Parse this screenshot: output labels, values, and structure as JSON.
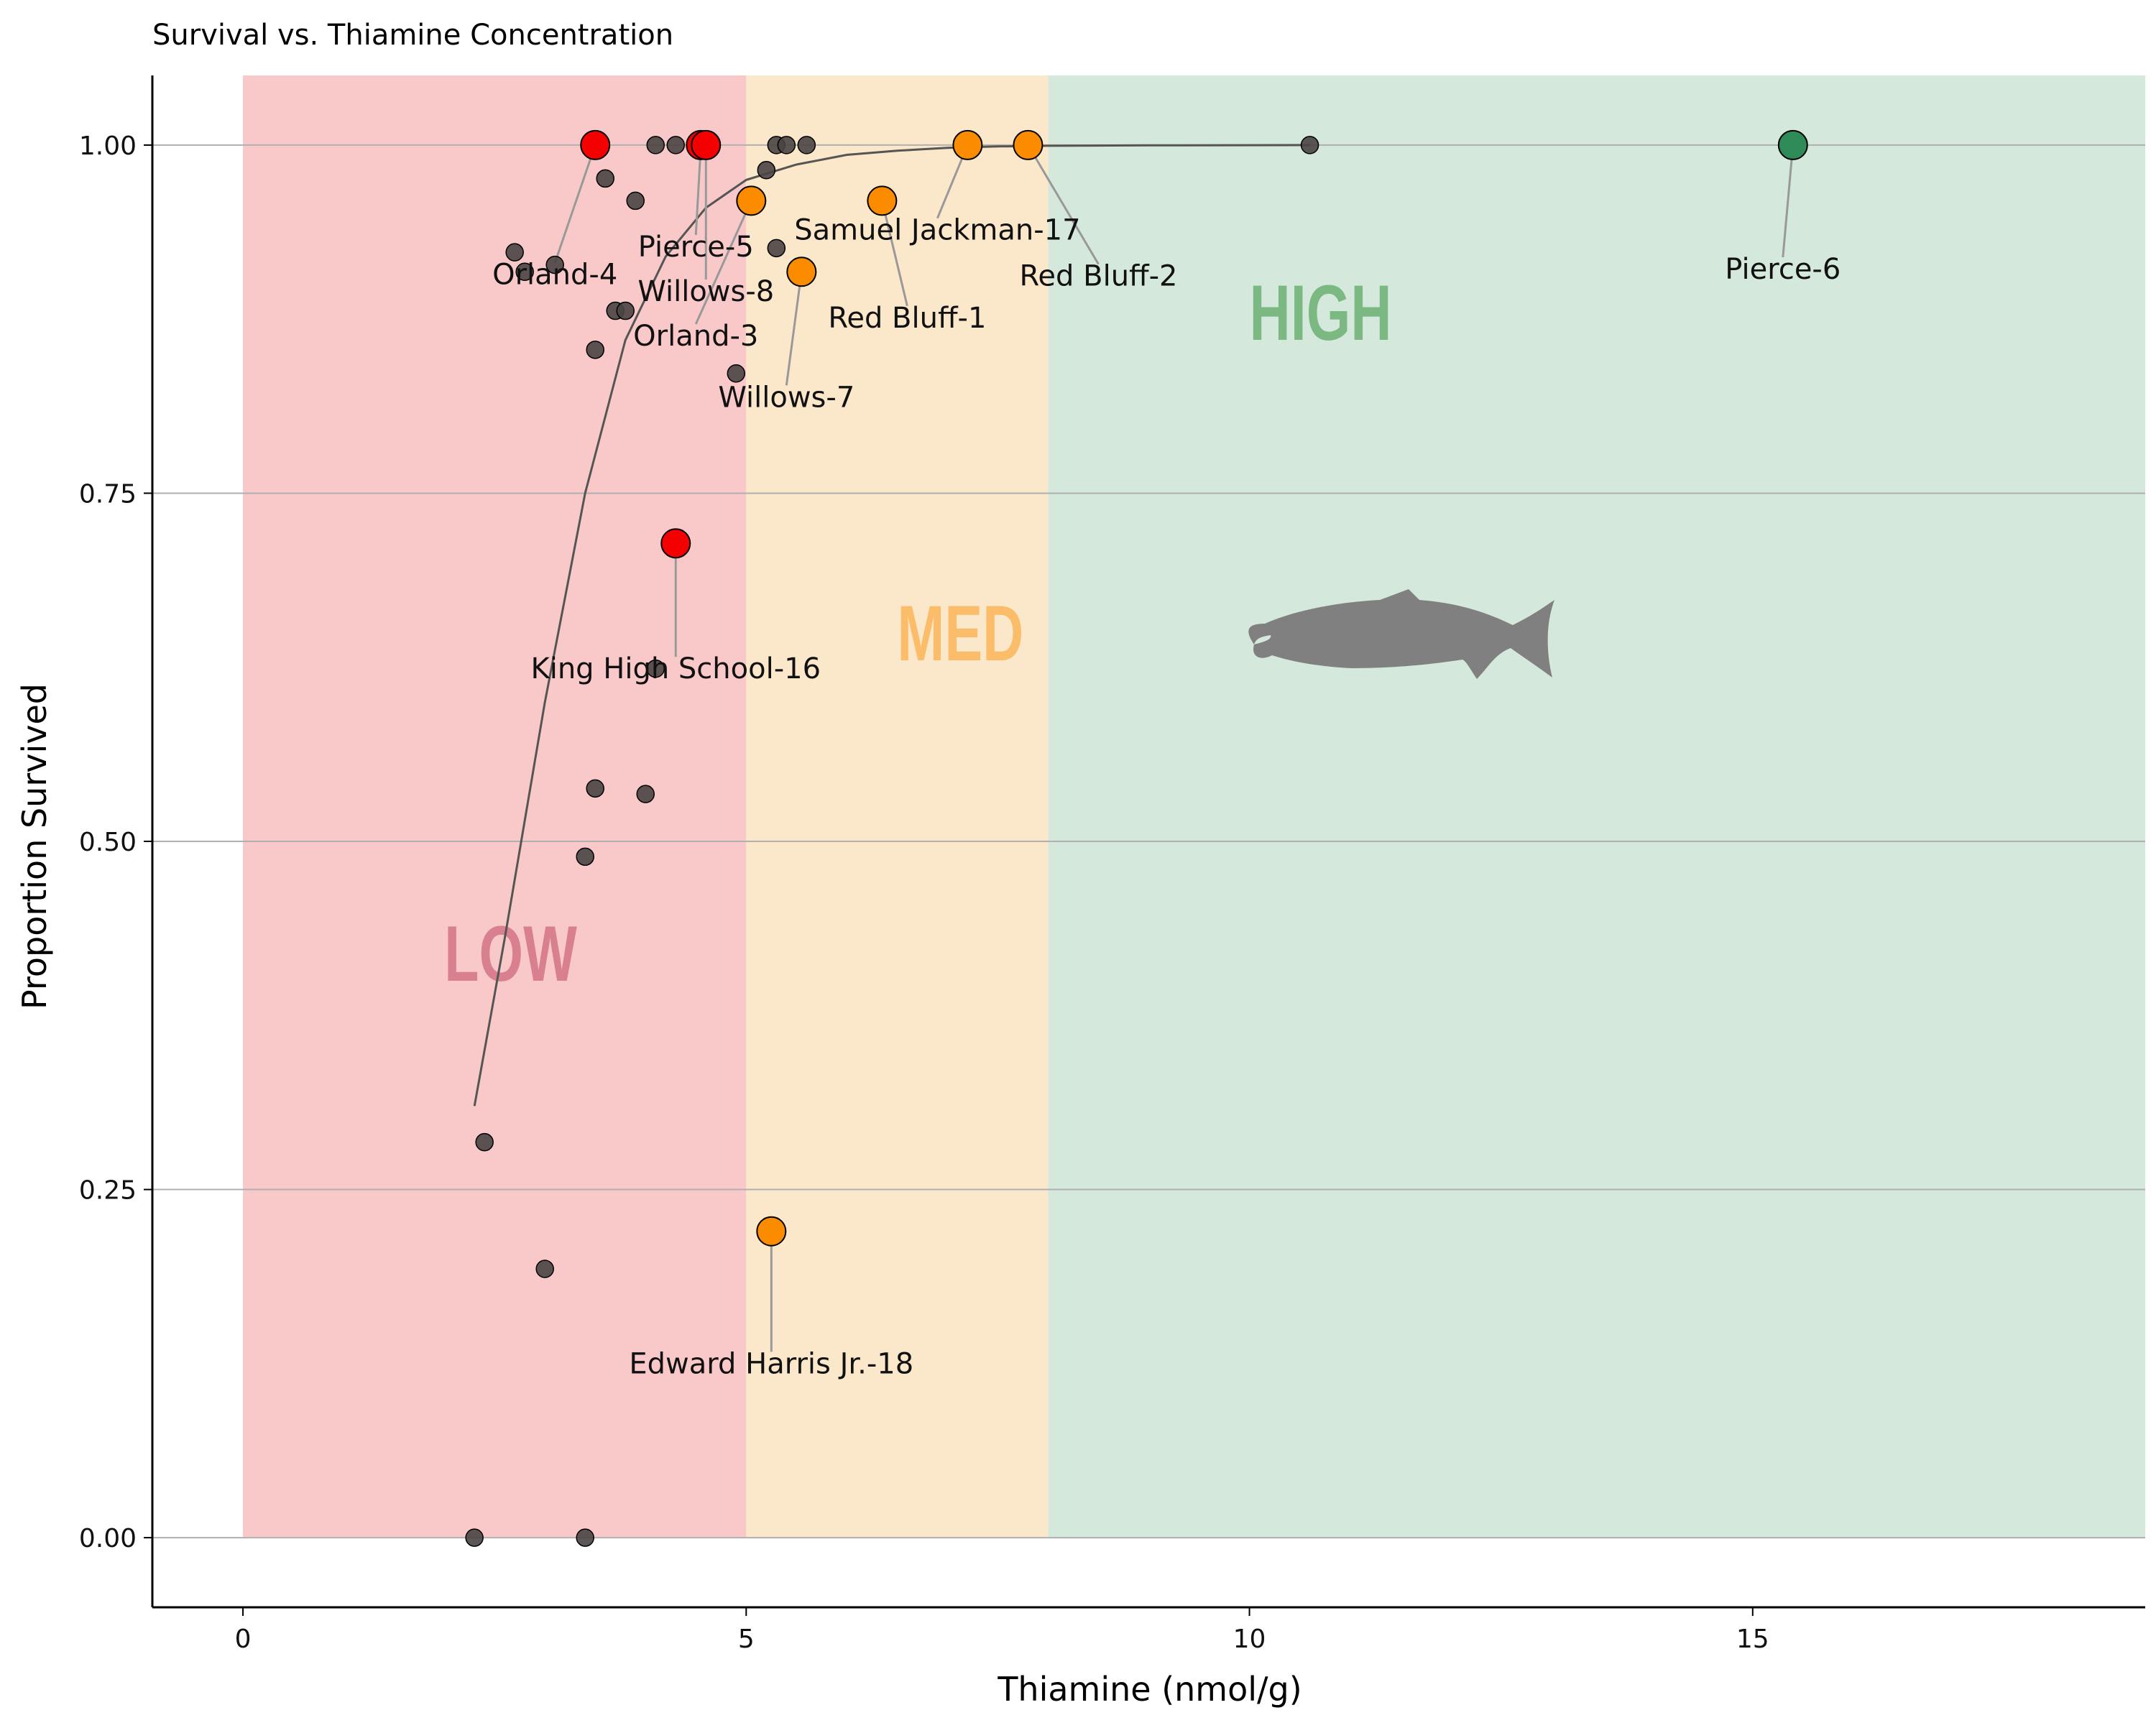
{
  "chart_data": {
    "type": "scatter",
    "title": "Survival vs. Thiamine Concentration",
    "xlabel": "Thiamine (nmol/g)",
    "ylabel": "Proportion Survived",
    "xlim": [
      -0.9,
      18.9
    ],
    "ylim": [
      -0.05,
      1.05
    ],
    "x_ticks": [
      0,
      5,
      10,
      15
    ],
    "x_tick_labels": [
      "0",
      "5",
      "10",
      "15"
    ],
    "y_ticks": [
      0,
      0.25,
      0.5,
      0.75,
      1.0
    ],
    "y_tick_labels": [
      "0.00",
      "0.25",
      "0.50",
      "0.75",
      "1.00"
    ],
    "grid": "horizontal",
    "zones": [
      {
        "label": "LOW",
        "x_from": 0,
        "x_to": 5,
        "fill": "#f9c9ca",
        "label_color": "#d8808f",
        "label_x": 2,
        "label_y": 0.4
      },
      {
        "label": "MED",
        "x_from": 5,
        "x_to": 8,
        "fill": "#fbe8ca",
        "label_color": "#fbbd6a",
        "label_x": 6.5,
        "label_y": 0.63
      },
      {
        "label": "HIGH",
        "x_from": 8,
        "x_to": 18.9,
        "fill": "#d4e8dc",
        "label_color": "#7cb882",
        "label_x": 10,
        "label_y": 0.86
      }
    ],
    "fit_curve": {
      "color": "#555555",
      "x": [
        2.3,
        2.6,
        3.0,
        3.4,
        3.8,
        4.2,
        4.6,
        5.0,
        5.5,
        6.0,
        6.5,
        7.0,
        7.5,
        8.0,
        9.0,
        10.6
      ],
      "y": [
        0.31,
        0.43,
        0.6,
        0.75,
        0.86,
        0.92,
        0.955,
        0.975,
        0.986,
        0.993,
        0.996,
        0.998,
        0.999,
        0.9995,
        0.9998,
        1.0
      ]
    },
    "small_points": {
      "color": "#4a4444",
      "points": [
        [
          3.5,
          1.0
        ],
        [
          4.1,
          1.0
        ],
        [
          4.3,
          1.0
        ],
        [
          5.3,
          1.0
        ],
        [
          5.4,
          1.0
        ],
        [
          5.6,
          1.0
        ],
        [
          10.6,
          1.0
        ],
        [
          3.6,
          0.976
        ],
        [
          3.9,
          0.96
        ],
        [
          5.2,
          0.982
        ],
        [
          5.3,
          0.926
        ],
        [
          2.7,
          0.923
        ],
        [
          2.8,
          0.909
        ],
        [
          3.1,
          0.914
        ],
        [
          3.7,
          0.881
        ],
        [
          3.8,
          0.881
        ],
        [
          3.5,
          0.853
        ],
        [
          4.9,
          0.836
        ],
        [
          4.1,
          0.624
        ],
        [
          3.5,
          0.538
        ],
        [
          4.0,
          0.534
        ],
        [
          3.4,
          0.489
        ],
        [
          2.4,
          0.284
        ],
        [
          3.0,
          0.193
        ],
        [
          2.3,
          0.0
        ],
        [
          3.4,
          0.0
        ]
      ]
    },
    "highlighted_points": [
      {
        "label": "Orland-4",
        "x": 3.5,
        "y": 1.0,
        "zone": "low",
        "label_x": 3.1,
        "label_y": 0.9
      },
      {
        "label": "Pierce-5",
        "x": 4.55,
        "y": 1.0,
        "zone": "low",
        "label_x": 4.5,
        "label_y": 0.92
      },
      {
        "label": "Willows-8",
        "x": 4.6,
        "y": 1.0,
        "zone": "low",
        "label_x": 4.6,
        "label_y": 0.888
      },
      {
        "label": "Orland-3",
        "x": 5.05,
        "y": 0.96,
        "zone": "med",
        "label_x": 4.5,
        "label_y": 0.856
      },
      {
        "label": "Willows-7",
        "x": 5.55,
        "y": 0.909,
        "zone": "med",
        "label_x": 5.4,
        "label_y": 0.812
      },
      {
        "label": "Red Bluff-1",
        "x": 6.35,
        "y": 0.96,
        "zone": "med",
        "label_x": 6.6,
        "label_y": 0.869
      },
      {
        "label": "Samuel Jackman-17",
        "x": 7.2,
        "y": 1.0,
        "zone": "med",
        "label_x": 6.9,
        "label_y": 0.932
      },
      {
        "label": "Red Bluff-2",
        "x": 7.8,
        "y": 1.0,
        "zone": "med",
        "label_x": 8.5,
        "label_y": 0.899
      },
      {
        "label": "Pierce-6",
        "x": 15.4,
        "y": 1.0,
        "zone": "high",
        "label_x": 15.3,
        "label_y": 0.904
      },
      {
        "label": "King High School-16",
        "x": 4.3,
        "y": 0.714,
        "zone": "low",
        "label_x": 4.3,
        "label_y": 0.617
      },
      {
        "label": "Edward Harris Jr.-18",
        "x": 5.25,
        "y": 0.22,
        "zone": "med",
        "label_x": 5.25,
        "label_y": 0.118
      }
    ],
    "highlight_colors": {
      "low": "#f50000",
      "med": "#fb8c00",
      "high": "#2e8b57"
    }
  }
}
